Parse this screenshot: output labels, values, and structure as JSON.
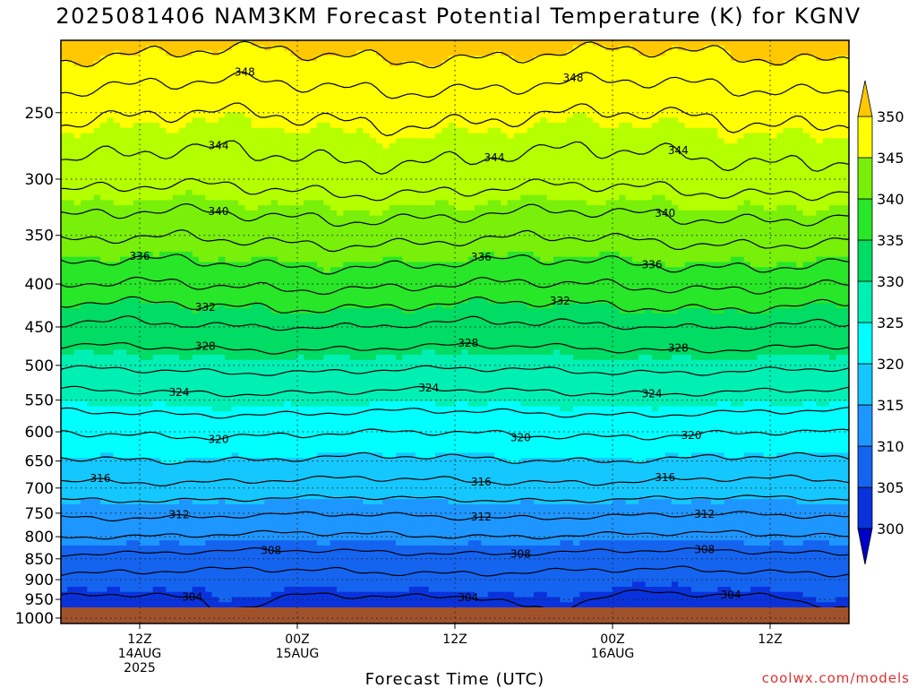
{
  "title": "2025081406 NAM3KM Forecast Potential Temperature (K) for KGNV",
  "credit": "coolwx.com/models",
  "chart_data": {
    "type": "heatmap",
    "title": "2025081406 NAM3KM Forecast Potential Temperature (K) for KGNV",
    "xlabel": "Forecast Time (UTC)",
    "ylabel": "",
    "x_range_hours_from_14aug06z": [
      0,
      60
    ],
    "y_axis": "pressure (hPa), log scale, inverted",
    "y_range": [
      1015,
      205
    ],
    "y_ticks": [
      250,
      300,
      350,
      400,
      450,
      500,
      550,
      600,
      650,
      700,
      750,
      800,
      850,
      900,
      950,
      1000
    ],
    "x_ticks": [
      {
        "hour": 6,
        "lines": [
          "12Z",
          "14AUG",
          "2025"
        ]
      },
      {
        "hour": 18,
        "lines": [
          "00Z",
          "15AUG"
        ]
      },
      {
        "hour": 30,
        "lines": [
          "12Z"
        ]
      },
      {
        "hour": 42,
        "lines": [
          "00Z",
          "16AUG"
        ]
      },
      {
        "hour": 54,
        "lines": [
          "12Z"
        ]
      }
    ],
    "colorbar": {
      "levels": [
        300,
        305,
        310,
        315,
        320,
        325,
        330,
        335,
        340,
        345,
        350
      ],
      "colors": [
        "#0000c8",
        "#0a32dc",
        "#1464f0",
        "#1e96ff",
        "#14c8ff",
        "#00ffff",
        "#00f0b4",
        "#00dc64",
        "#28e628",
        "#78f00a",
        "#b4ff00",
        "#ffff00",
        "#ffc800"
      ],
      "extend": "both"
    },
    "contour_interval": 2,
    "labeled_contours": [
      {
        "value": 348,
        "label_hours": [
          14,
          39
        ]
      },
      {
        "value": 344,
        "label_hours": [
          12,
          33,
          47
        ]
      },
      {
        "value": 340,
        "label_hours": [
          12,
          46
        ]
      },
      {
        "value": 336,
        "label_hours": [
          6,
          32,
          45
        ]
      },
      {
        "value": 332,
        "label_hours": [
          11,
          38
        ]
      },
      {
        "value": 328,
        "label_hours": [
          11,
          31,
          47
        ]
      },
      {
        "value": 324,
        "label_hours": [
          9,
          28,
          45
        ]
      },
      {
        "value": 320,
        "label_hours": [
          12,
          35,
          48
        ]
      },
      {
        "value": 316,
        "label_hours": [
          3,
          32,
          46
        ]
      },
      {
        "value": 312,
        "label_hours": [
          9,
          32,
          49
        ]
      },
      {
        "value": 308,
        "label_hours": [
          16,
          35,
          49
        ]
      },
      {
        "value": 304,
        "label_hours": [
          10,
          31,
          51
        ]
      }
    ],
    "profile": {
      "pressure": [
        1000,
        975,
        950,
        925,
        900,
        850,
        800,
        750,
        700,
        650,
        600,
        550,
        500,
        450,
        400,
        350,
        300,
        250,
        200
      ],
      "theta": [
        301.5,
        302.5,
        303.5,
        304.5,
        305.2,
        307.2,
        309.8,
        312.3,
        315.3,
        317.8,
        320.2,
        323.2,
        326.5,
        329.8,
        334.2,
        338.5,
        342.8,
        346.3,
        351.5
      ]
    }
  }
}
